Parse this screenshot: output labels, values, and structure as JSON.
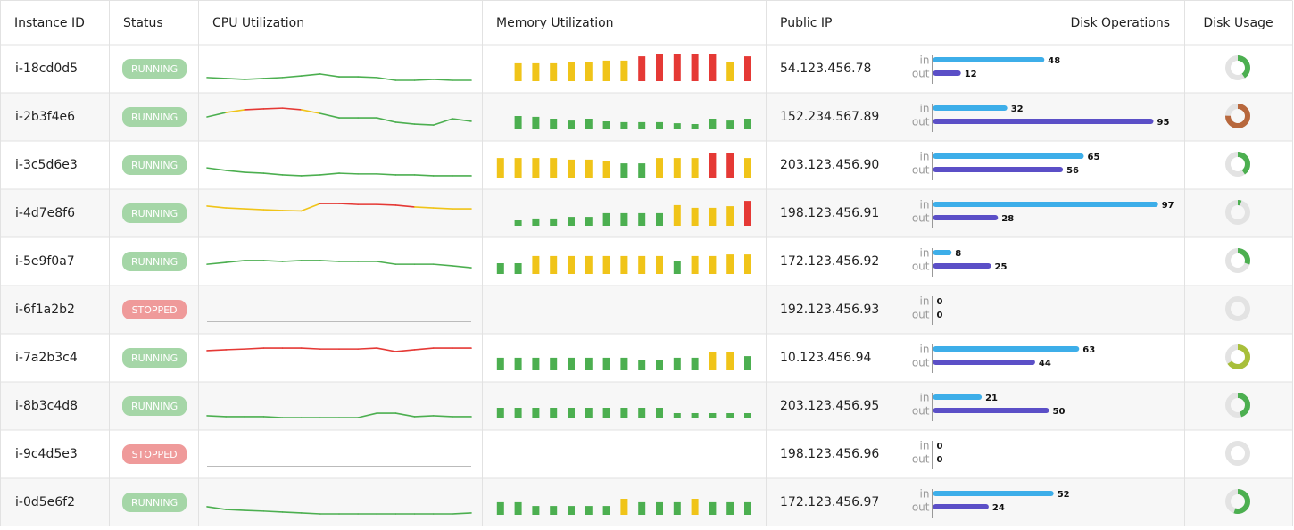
{
  "table": {
    "columns": [
      "Instance ID",
      "Status",
      "CPU Utilization",
      "Memory Utilization",
      "Public IP",
      "Disk Operations",
      "Disk Usage"
    ],
    "disk_labels": {
      "in": "in",
      "out": "out"
    },
    "value_range": [
      0,
      100
    ],
    "thresholds": [
      {
        "min": 0,
        "color": "#4caf50"
      },
      {
        "min": 60,
        "color": "#f0c419"
      },
      {
        "min": 80,
        "color": "#e53935"
      }
    ],
    "disk_in_color": "#3daee9",
    "disk_out_color": "#5b4fc7",
    "status_colors": {
      "RUNNING": "#a5d6a7",
      "STOPPED": "#ef9a9a"
    },
    "rows": [
      {
        "instance_id": "i-18cd0d5",
        "status": "RUNNING",
        "cpu": [
          12,
          8,
          4,
          8,
          12,
          19,
          27,
          15,
          15,
          12,
          0,
          0,
          4,
          0,
          0
        ],
        "memory": [
          67,
          67,
          67,
          73,
          73,
          77,
          77,
          93,
          100,
          100,
          100,
          100,
          73,
          93
        ],
        "public_ip": "54.123.456.78",
        "disk_in": 48,
        "disk_out": 12,
        "disk_usage": 40,
        "usage_color": "#4caf50"
      },
      {
        "instance_id": "i-2b3f4e6",
        "status": "RUNNING",
        "cpu": [
          50,
          69,
          81,
          85,
          88,
          81,
          65,
          46,
          46,
          46,
          27,
          19,
          15,
          42,
          31
        ],
        "memory": [
          50,
          47,
          40,
          33,
          40,
          30,
          27,
          27,
          27,
          23,
          20,
          40,
          33,
          40
        ],
        "public_ip": "152.234.567.89",
        "disk_in": 32,
        "disk_out": 95,
        "disk_usage": 75,
        "usage_color": "#b8683d"
      },
      {
        "instance_id": "i-3c5d6e3",
        "status": "RUNNING",
        "cpu": [
          38,
          27,
          19,
          15,
          8,
          4,
          8,
          15,
          12,
          12,
          8,
          8,
          4,
          4,
          4
        ],
        "memory": [
          73,
          73,
          73,
          73,
          67,
          67,
          63,
          53,
          53,
          73,
          73,
          73,
          93,
          93,
          73
        ],
        "public_ip": "203.123.456.90",
        "disk_in": 65,
        "disk_out": 56,
        "disk_usage": 40,
        "usage_color": "#4caf50"
      },
      {
        "instance_id": "i-4d7e8f6",
        "status": "RUNNING",
        "cpu": [
          81,
          73,
          69,
          65,
          62,
          60,
          92,
          92,
          88,
          88,
          85,
          77,
          73,
          69,
          69
        ],
        "memory": [
          20,
          27,
          27,
          33,
          33,
          47,
          47,
          47,
          47,
          77,
          67,
          67,
          73,
          93
        ],
        "public_ip": "198.123.456.91",
        "disk_in": 97,
        "disk_out": 28,
        "disk_usage": 5,
        "usage_color": "#4caf50"
      },
      {
        "instance_id": "i-5e9f0a7",
        "status": "RUNNING",
        "cpu": [
          38,
          46,
          54,
          54,
          50,
          54,
          54,
          50,
          50,
          50,
          38,
          38,
          38,
          31,
          23
        ],
        "memory": [
          40,
          40,
          67,
          67,
          67,
          67,
          67,
          67,
          67,
          67,
          47,
          67,
          67,
          73,
          73
        ],
        "public_ip": "172.123.456.92",
        "disk_in": 8,
        "disk_out": 25,
        "disk_usage": 30,
        "usage_color": "#4caf50"
      },
      {
        "instance_id": "i-6f1a2b2",
        "status": "STOPPED",
        "cpu": [],
        "memory": [],
        "public_ip": "192.123.456.93",
        "disk_in": 0,
        "disk_out": 0,
        "disk_usage": 0,
        "usage_color": "#4caf50"
      },
      {
        "instance_id": "i-7a2b3c4",
        "status": "RUNNING",
        "cpu": [
          81,
          85,
          88,
          92,
          92,
          92,
          88,
          88,
          88,
          92,
          77,
          85,
          92,
          92,
          92
        ],
        "memory": [
          47,
          47,
          47,
          47,
          47,
          47,
          47,
          47,
          40,
          40,
          47,
          47,
          67,
          67,
          53
        ],
        "public_ip": "10.123.456.94",
        "disk_in": 63,
        "disk_out": 44,
        "disk_usage": 65,
        "usage_color": "#a8bf3a"
      },
      {
        "instance_id": "i-8b3c4d8",
        "status": "RUNNING",
        "cpu": [
          8,
          4,
          4,
          4,
          0,
          0,
          0,
          0,
          0,
          19,
          19,
          4,
          8,
          4,
          4
        ],
        "memory": [
          40,
          40,
          40,
          40,
          40,
          40,
          40,
          40,
          40,
          40,
          20,
          20,
          20,
          20,
          20
        ],
        "public_ip": "203.123.456.95",
        "disk_in": 21,
        "disk_out": 50,
        "disk_usage": 45,
        "usage_color": "#4caf50"
      },
      {
        "instance_id": "i-9c4d5e3",
        "status": "STOPPED",
        "cpu": [],
        "memory": [],
        "public_ip": "198.123.456.96",
        "disk_in": 0,
        "disk_out": 0,
        "disk_usage": 0,
        "usage_color": "#4caf50"
      },
      {
        "instance_id": "i-0d5e6f2",
        "status": "RUNNING",
        "cpu": [
          31,
          19,
          15,
          12,
          8,
          4,
          0,
          0,
          0,
          0,
          0,
          0,
          0,
          0,
          4
        ],
        "memory": [
          47,
          47,
          33,
          33,
          33,
          33,
          33,
          60,
          47,
          47,
          47,
          60,
          47,
          47,
          47
        ],
        "public_ip": "172.123.456.97",
        "disk_in": 52,
        "disk_out": 24,
        "disk_usage": 55,
        "usage_color": "#4caf50"
      }
    ]
  }
}
